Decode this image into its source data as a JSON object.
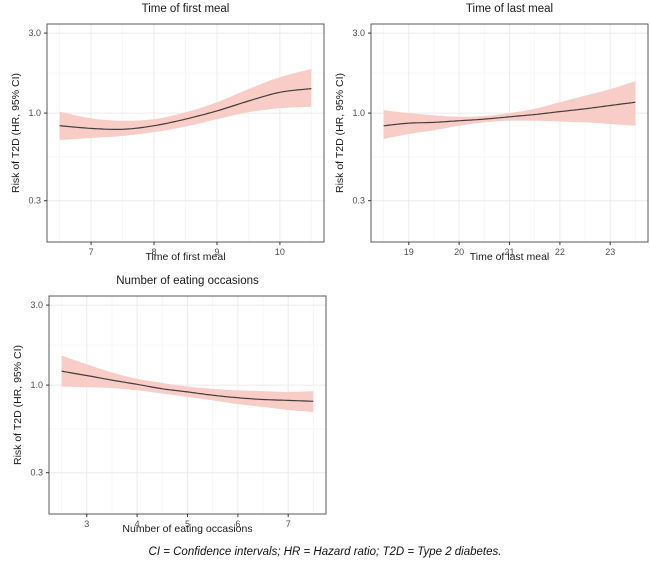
{
  "figure": {
    "caption": "CI = Confidence intervals; HR = Hazard ratio; T2D = Type 2 diabetes.",
    "colors": {
      "background": "#ffffff",
      "band": "#f8cdc8",
      "line": "#443c3c",
      "panel_border": "#595959",
      "grid_major": "#ebebeb",
      "grid_minor": "#f5f5f5",
      "tick_mark": "#333333",
      "tick_text": "#4d4d4d",
      "title_text": "#1a1a1a"
    }
  },
  "chart_data": [
    {
      "type": "line",
      "title": "Time of first meal",
      "xlabel": "Time of first meal",
      "ylabel": "Risk of T2D (HR, 95% CI)",
      "yscale": "log",
      "grid": true,
      "legend": false,
      "xlim": [
        6.3,
        10.7
      ],
      "ylim": [
        0.17,
        3.4
      ],
      "x_ticks": [
        7,
        8,
        9,
        10
      ],
      "x_minor": [
        6.5,
        7.5,
        8.5,
        9.5,
        10.5
      ],
      "y_ticks": [
        0.3,
        1.0,
        3.0
      ],
      "y_tick_labels": [
        "0.3",
        "1.0",
        "3.0"
      ],
      "y_minor": [
        0.548,
        1.732
      ],
      "x": [
        6.5,
        7.0,
        7.5,
        8.0,
        8.5,
        9.0,
        9.5,
        10.0,
        10.5
      ],
      "series": [
        {
          "name": "Hazard ratio",
          "values": [
            0.84,
            0.81,
            0.8,
            0.84,
            0.92,
            1.03,
            1.18,
            1.33,
            1.4
          ]
        },
        {
          "name": "95% CI upper",
          "values": [
            1.02,
            0.93,
            0.9,
            0.92,
            1.01,
            1.16,
            1.39,
            1.64,
            1.83
          ]
        },
        {
          "name": "95% CI lower",
          "values": [
            0.69,
            0.71,
            0.73,
            0.77,
            0.83,
            0.92,
            1.01,
            1.07,
            1.09
          ]
        }
      ]
    },
    {
      "type": "line",
      "title": "Time of last meal",
      "xlabel": "Time of last meal",
      "ylabel": "Risk of T2D (HR, 95% CI)",
      "yscale": "log",
      "grid": true,
      "legend": false,
      "xlim": [
        18.25,
        23.75
      ],
      "ylim": [
        0.17,
        3.4
      ],
      "x_ticks": [
        19,
        20,
        21,
        22,
        23
      ],
      "x_minor": [
        18.5,
        19.5,
        20.5,
        21.5,
        22.5,
        23.5
      ],
      "y_ticks": [
        0.3,
        1.0,
        3.0
      ],
      "y_tick_labels": [
        "0.3",
        "1.0",
        "3.0"
      ],
      "y_minor": [
        0.548,
        1.732
      ],
      "x": [
        18.5,
        19.0,
        19.5,
        20.0,
        20.5,
        21.0,
        21.5,
        22.0,
        22.5,
        23.0,
        23.5
      ],
      "series": [
        {
          "name": "Hazard ratio",
          "values": [
            0.84,
            0.87,
            0.88,
            0.9,
            0.92,
            0.95,
            0.98,
            1.02,
            1.06,
            1.11,
            1.16
          ]
        },
        {
          "name": "95% CI upper",
          "values": [
            1.04,
            1.0,
            0.97,
            0.95,
            0.96,
            1.0,
            1.06,
            1.16,
            1.27,
            1.39,
            1.55
          ]
        },
        {
          "name": "95% CI lower",
          "values": [
            0.7,
            0.75,
            0.79,
            0.84,
            0.88,
            0.9,
            0.9,
            0.89,
            0.88,
            0.86,
            0.84
          ]
        }
      ]
    },
    {
      "type": "line",
      "title": "Number of eating occasions",
      "xlabel": "Number of eating occasions",
      "ylabel": "Risk of T2D (HR, 95% CI)",
      "yscale": "log",
      "grid": true,
      "legend": false,
      "xlim": [
        2.25,
        7.75
      ],
      "ylim": [
        0.17,
        3.4
      ],
      "x_ticks": [
        3,
        4,
        5,
        6,
        7
      ],
      "x_minor": [
        2.5,
        3.5,
        4.5,
        5.5,
        6.5,
        7.5
      ],
      "y_ticks": [
        0.3,
        1.0,
        3.0
      ],
      "y_tick_labels": [
        "0.3",
        "1.0",
        "3.0"
      ],
      "y_minor": [
        0.548,
        1.732
      ],
      "x": [
        2.5,
        3.0,
        3.5,
        4.0,
        4.5,
        5.0,
        5.5,
        6.0,
        6.5,
        7.0,
        7.5
      ],
      "series": [
        {
          "name": "Hazard ratio",
          "values": [
            1.21,
            1.14,
            1.07,
            1.01,
            0.95,
            0.91,
            0.87,
            0.84,
            0.82,
            0.81,
            0.8
          ]
        },
        {
          "name": "95% CI upper",
          "values": [
            1.5,
            1.33,
            1.19,
            1.09,
            1.03,
            0.98,
            0.95,
            0.93,
            0.92,
            0.91,
            0.92
          ]
        },
        {
          "name": "95% CI lower",
          "values": [
            0.98,
            0.97,
            0.96,
            0.93,
            0.89,
            0.85,
            0.81,
            0.77,
            0.74,
            0.71,
            0.69
          ]
        }
      ]
    }
  ]
}
